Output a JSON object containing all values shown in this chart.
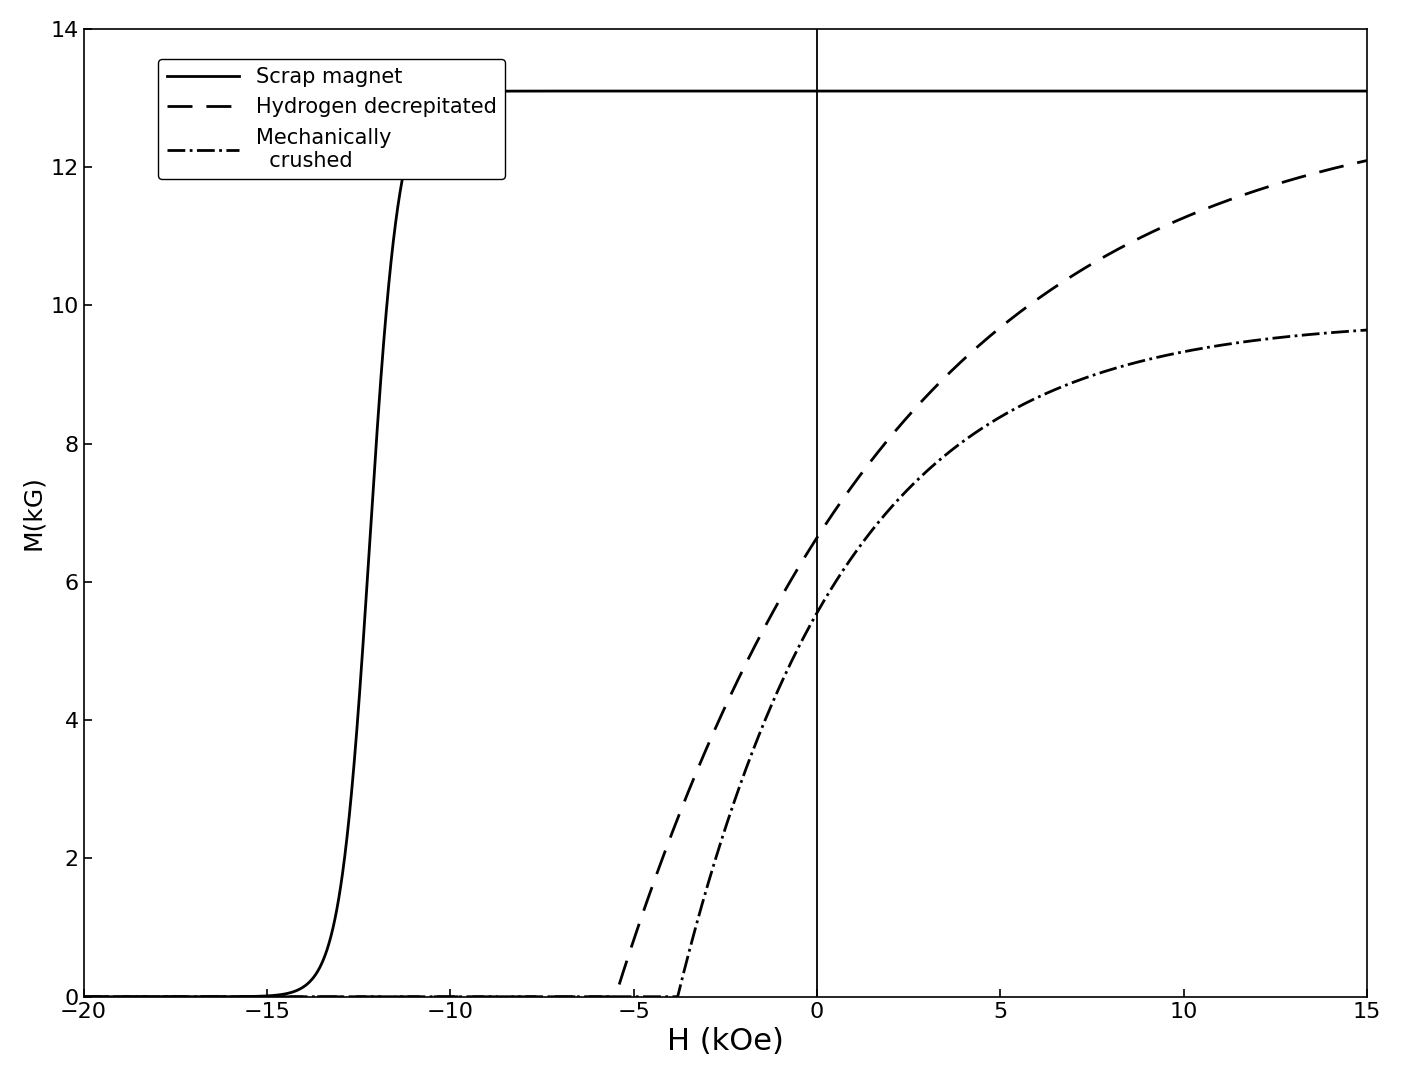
{
  "title": "",
  "xlabel": "H (kOe)",
  "ylabel": "M(kG)",
  "xlim": [
    -20,
    15
  ],
  "ylim": [
    0,
    14
  ],
  "xticks": [
    -20,
    -15,
    -10,
    -5,
    0,
    5,
    10,
    15
  ],
  "yticks": [
    0,
    2,
    4,
    6,
    8,
    10,
    12,
    14
  ],
  "legend": [
    {
      "label": "Scrap magnet",
      "linestyle": "solid"
    },
    {
      "label": "Hydrogen decrepitated",
      "linestyle": "dashed"
    },
    {
      "label": "Mechanically\n  crushed",
      "linestyle": "dashdot"
    }
  ],
  "line_color": "#000000",
  "background_color": "#ffffff",
  "xlabel_fontsize": 22,
  "ylabel_fontsize": 18,
  "tick_fontsize": 16,
  "legend_fontsize": 15,
  "scrap_coercive": -12.2,
  "scrap_steepness": 2.5,
  "scrap_sat": 13.1,
  "hd_start": -5.5,
  "hd_rate": 0.13,
  "hd_sat": 13.0,
  "mc_start": -3.8,
  "mc_rate": 0.22,
  "mc_sat": 9.8
}
